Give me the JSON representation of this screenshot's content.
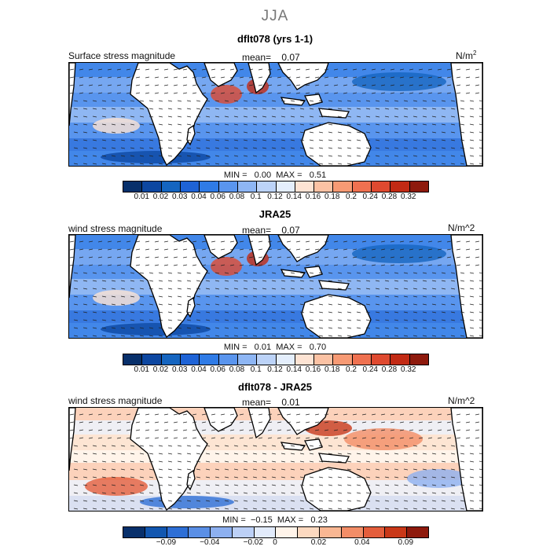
{
  "season": "JJA",
  "palette_abs": [
    "#08306b",
    "#0d47a1",
    "#1565c0",
    "#1e63d6",
    "#2f7be6",
    "#5a95ee",
    "#8eb6f4",
    "#bcd3f8",
    "#e4eefc",
    "#fde3d3",
    "#fbc2a4",
    "#f79a74",
    "#ef7150",
    "#df4a30",
    "#c22a14",
    "#8e1a0d"
  ],
  "palette_diff": [
    "#08306b",
    "#1257b0",
    "#2e6fd6",
    "#5a8fe6",
    "#8db0f0",
    "#bcd0f6",
    "#e2ebfb",
    "#fff4ea",
    "#fcd9c0",
    "#f9b793",
    "#f28d67",
    "#e45e3c",
    "#c93818",
    "#8e1a0d"
  ],
  "panels": [
    {
      "title": "dflt078 (yrs 1-1)",
      "variable": "Surface stress magnitude",
      "mean_label": "mean=",
      "mean_value": "0.07",
      "units": "N/m",
      "units_sup": "2",
      "min_label": "MIN =",
      "min_value": "0.00",
      "max_label": "MAX =",
      "max_value": "0.51",
      "cbar_ticks": [
        "0.01",
        "0.02",
        "0.03",
        "0.04",
        "0.06",
        "0.08",
        "0.1",
        "0.12",
        "0.14",
        "0.16",
        "0.18",
        "0.2",
        "0.24",
        "0.28",
        "0.32"
      ]
    },
    {
      "title": "JRA25",
      "variable": "wind stress magnitude",
      "mean_label": "mean=",
      "mean_value": "0.07",
      "units": "N/m^2",
      "units_sup": "",
      "min_label": "MIN =",
      "min_value": "0.01",
      "max_label": "MAX =",
      "max_value": "0.70",
      "cbar_ticks": [
        "0.01",
        "0.02",
        "0.03",
        "0.04",
        "0.06",
        "0.08",
        "0.1",
        "0.12",
        "0.14",
        "0.16",
        "0.18",
        "0.2",
        "0.24",
        "0.28",
        "0.32"
      ]
    },
    {
      "title": "dflt078 - JRA25",
      "variable": "wind stress magnitude",
      "mean_label": "mean=",
      "mean_value": "0.01",
      "units": "N/m^2",
      "units_sup": "",
      "min_label": "MIN =",
      "min_value": "−0.15",
      "max_label": "MAX =",
      "max_value": "0.23",
      "cbar_ticks": [
        "−0.09",
        "−0.04",
        "−0.02",
        "0",
        "0.02",
        "0.04",
        "0.09"
      ]
    }
  ]
}
